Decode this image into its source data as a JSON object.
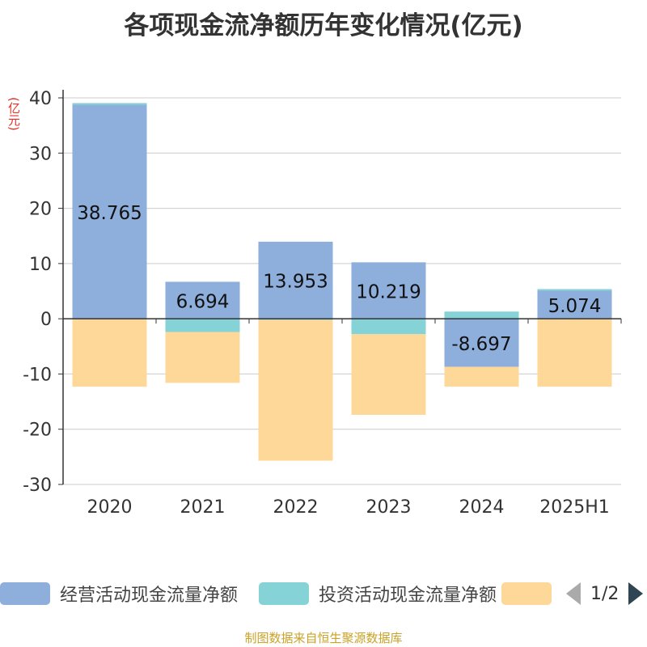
{
  "title": "各项现金流净额历年变化情况(亿元)",
  "unit_label": "(亿元)",
  "source": "制图数据来自恒生聚源数据库",
  "legend_pager": "1/2",
  "colors": {
    "operating": "#8eaedb",
    "investing": "#85d3d6",
    "financing": "#fed898"
  },
  "chart_data": {
    "type": "bar",
    "stacked": true,
    "categories": [
      "2020",
      "2021",
      "2022",
      "2023",
      "2024",
      "2025H1"
    ],
    "ylim": [
      -30,
      40
    ],
    "yticks": [
      40,
      30,
      20,
      10,
      0,
      -10,
      -20,
      -30
    ],
    "grid": true,
    "legend_position": "bottom",
    "series": [
      {
        "name": "经营活动现金流量净额",
        "values": [
          38.765,
          6.694,
          13.953,
          10.219,
          -8.697,
          5.074
        ],
        "labeled": true
      },
      {
        "name": "投资活动现金流量净额",
        "values": [
          0.3,
          -2.4,
          -0.2,
          -2.8,
          1.3,
          0.3
        ],
        "labeled": false
      },
      {
        "name": "",
        "values": [
          -12.3,
          -9.2,
          -25.5,
          -14.6,
          -3.6,
          -12.3
        ],
        "labeled": false
      }
    ],
    "data_labels": [
      "38.765",
      "6.694",
      "13.953",
      "10.219",
      "-8.697",
      "5.074"
    ]
  }
}
